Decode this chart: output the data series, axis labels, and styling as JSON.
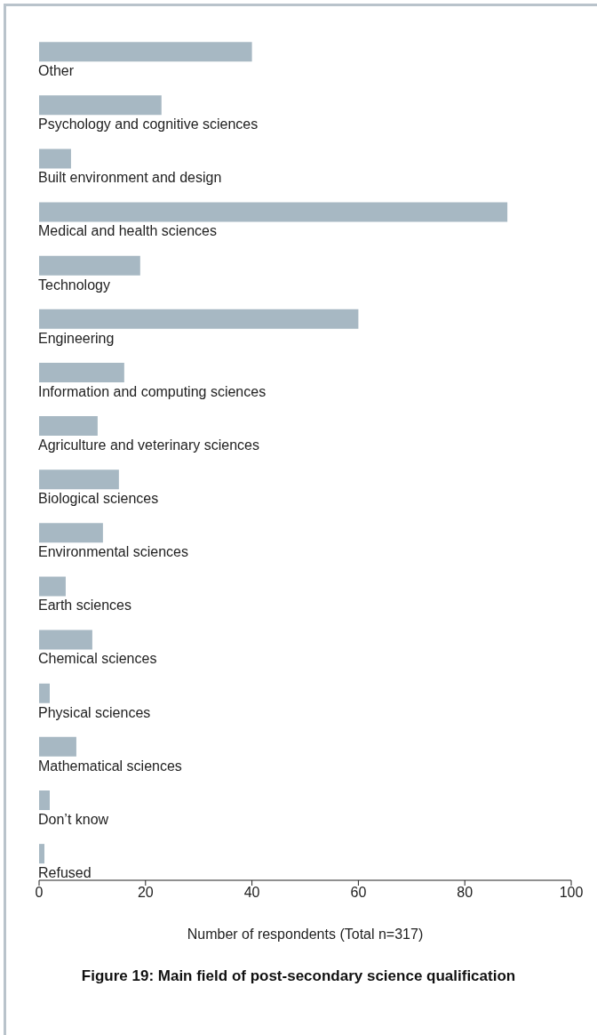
{
  "chart_data": {
    "type": "bar",
    "orientation": "horizontal",
    "title": "Figure 19: Main field of post-secondary science qualification",
    "xlabel": "Number of respondents (Total n=317)",
    "categories": [
      "Other",
      "Psychology and cognitive sciences",
      "Built environment and design",
      "Medical and health sciences",
      "Technology",
      "Engineering",
      "Information and computing sciences",
      "Agriculture and veterinary sciences",
      "Biological sciences",
      "Environmental sciences",
      "Earth sciences",
      "Chemical sciences",
      "Physical sciences",
      "Mathematical sciences",
      "Don’t know",
      "Refused"
    ],
    "values": [
      40,
      23,
      6,
      88,
      19,
      60,
      16,
      11,
      15,
      12,
      5,
      10,
      2,
      7,
      2,
      1
    ],
    "color": "#a7b8c3",
    "xlim": [
      0,
      100
    ],
    "xticks": [
      0,
      20,
      40,
      60,
      80,
      100
    ]
  }
}
